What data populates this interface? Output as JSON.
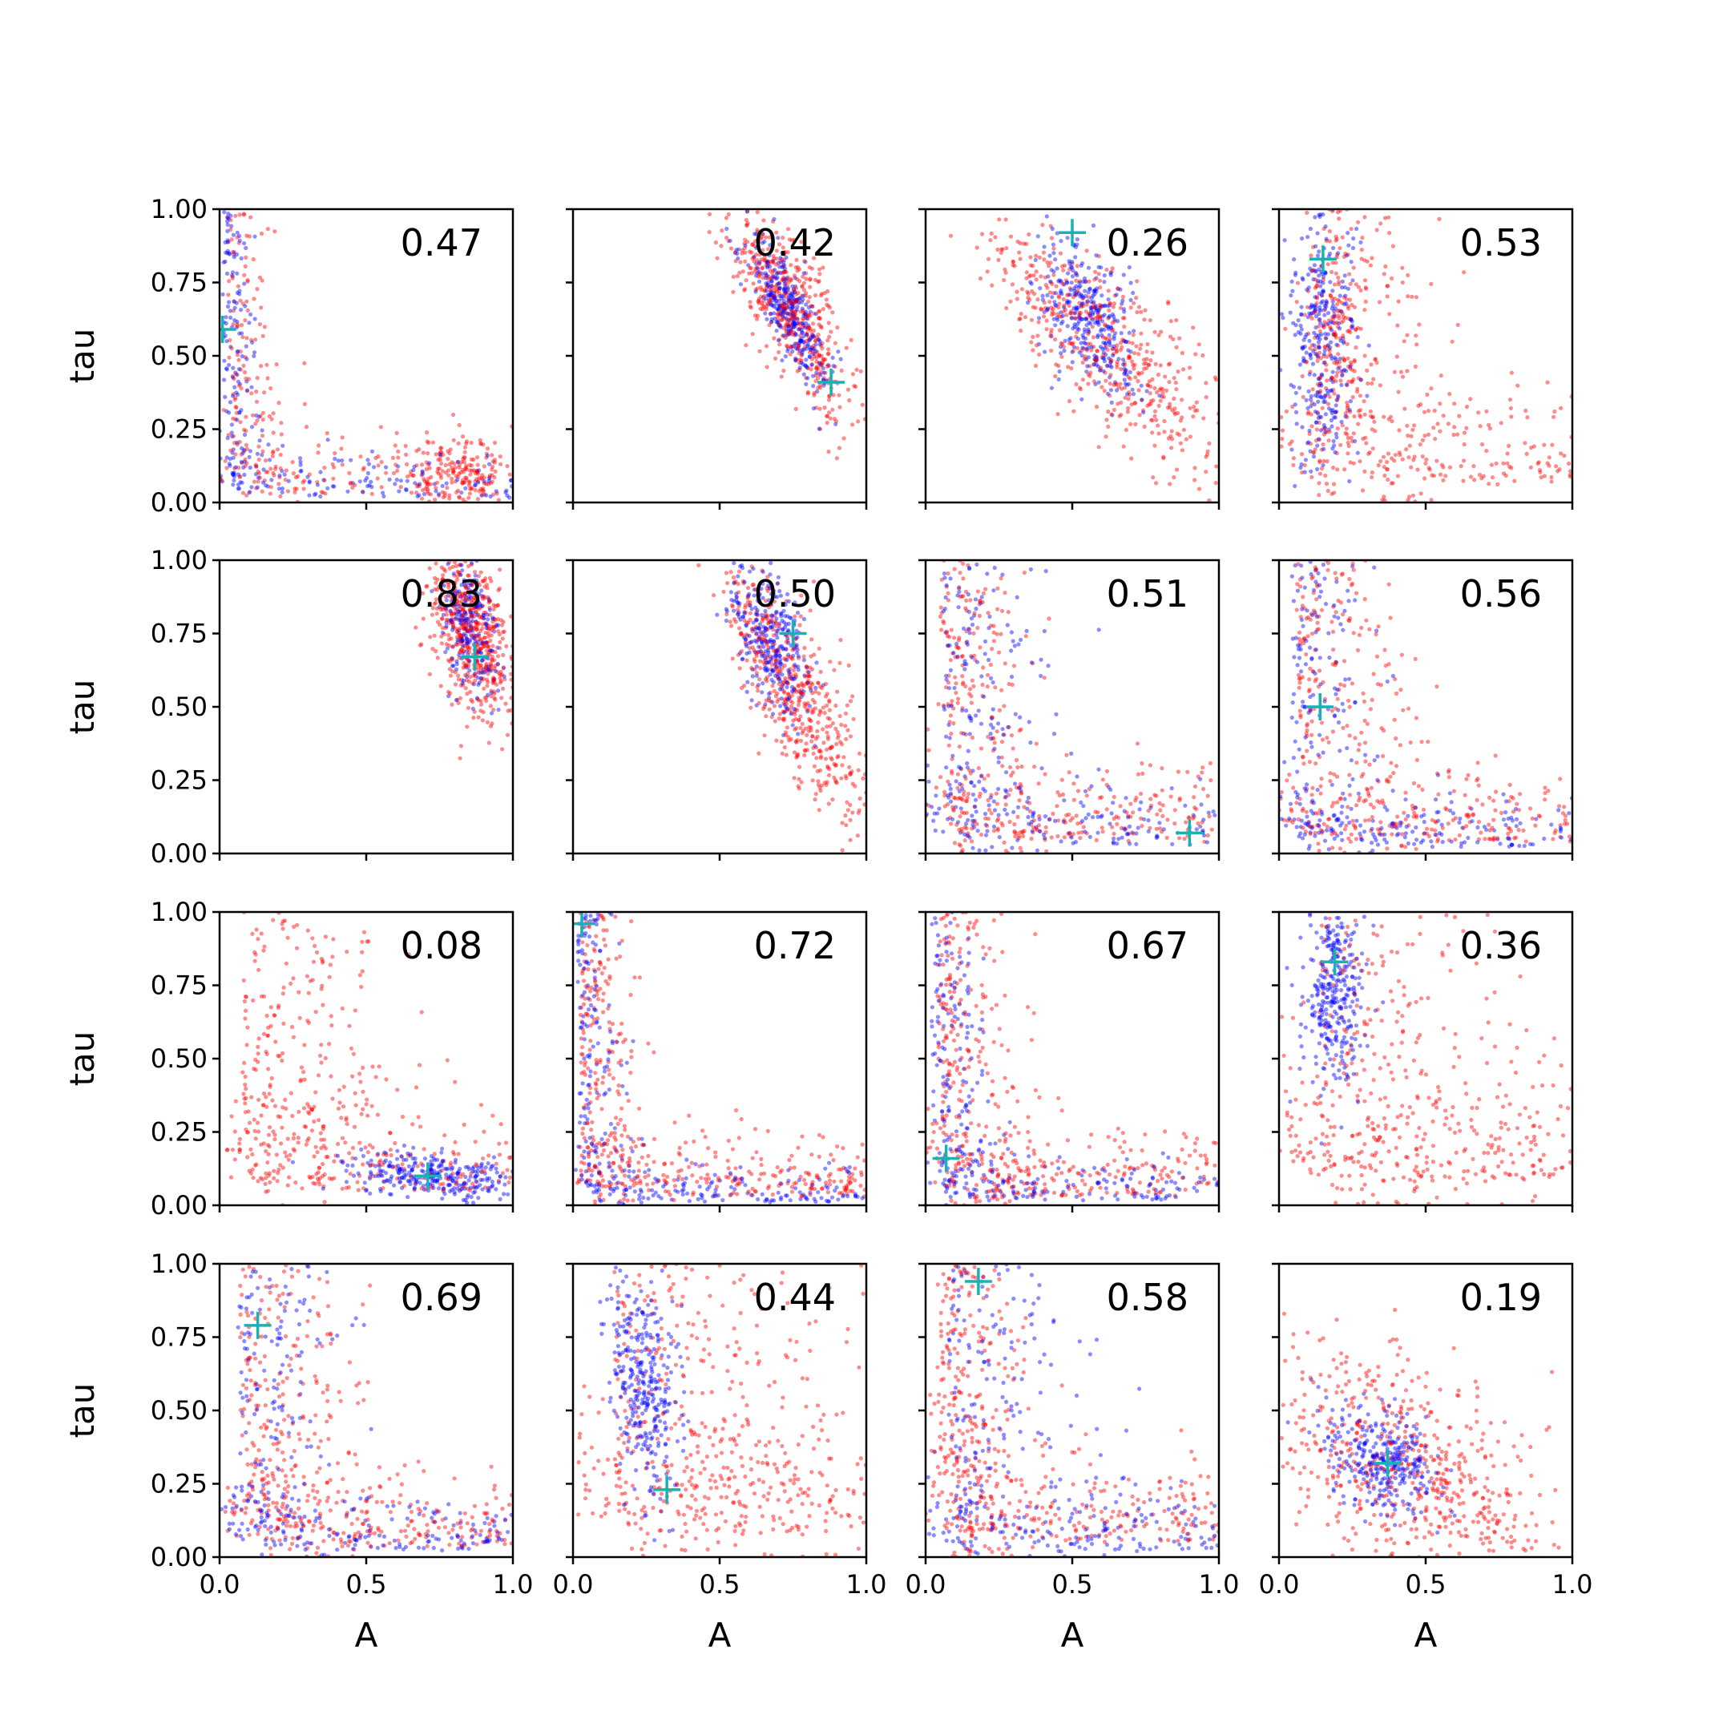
{
  "figure": {
    "rows": 4,
    "cols": 4,
    "xlabel": "A",
    "ylabel": "tau",
    "xlim": [
      0,
      1
    ],
    "ylim": [
      0,
      1
    ],
    "xticks": [
      0.0,
      0.5,
      1.0
    ],
    "xtick_labels": [
      "0.0",
      "0.5",
      "1.0"
    ],
    "yticks": [
      0.0,
      0.25,
      0.5,
      0.75,
      1.0
    ],
    "ytick_labels": [
      "0.00",
      "0.25",
      "0.50",
      "0.75",
      "1.00"
    ],
    "colors": {
      "series_a": "#0000ff",
      "series_b": "#ff0000",
      "marker": "#17b3b3"
    }
  },
  "chart_data": [
    {
      "type": "scatter",
      "label": "0.47",
      "xlabel": "",
      "ylabel": "tau",
      "xlim": [
        0,
        1
      ],
      "ylim": [
        0,
        1
      ],
      "marker": {
        "x": 0.01,
        "y": 0.59
      },
      "blue": {
        "shape": "corner",
        "ax": 0.02,
        "ty": 0.03,
        "count": 260,
        "seed": 11
      },
      "red": [
        {
          "shape": "corner",
          "ax": 0.05,
          "ty": 0.05,
          "count": 200,
          "seed": 12
        },
        {
          "shape": "blob",
          "cx": 0.82,
          "cy": 0.1,
          "sx": 0.08,
          "sy": 0.06,
          "rho": 0,
          "count": 160,
          "seed": 13
        }
      ]
    },
    {
      "type": "scatter",
      "label": "0.42",
      "xlabel": "",
      "ylabel": "",
      "xlim": [
        0,
        1
      ],
      "ylim": [
        0,
        1
      ],
      "marker": {
        "x": 0.88,
        "y": 0.41
      },
      "blue": {
        "shape": "blob",
        "cx": 0.74,
        "cy": 0.64,
        "sx": 0.07,
        "sy": 0.13,
        "rho": -0.8,
        "count": 320,
        "seed": 21
      },
      "red": [
        {
          "shape": "blob",
          "cx": 0.74,
          "cy": 0.66,
          "sx": 0.1,
          "sy": 0.17,
          "rho": -0.75,
          "count": 360,
          "seed": 22
        }
      ]
    },
    {
      "type": "scatter",
      "label": "0.26",
      "xlabel": "",
      "ylabel": "",
      "xlim": [
        0,
        1
      ],
      "ylim": [
        0,
        1
      ],
      "marker": {
        "x": 0.5,
        "y": 0.92
      },
      "blue": {
        "shape": "blob",
        "cx": 0.55,
        "cy": 0.63,
        "sx": 0.09,
        "sy": 0.13,
        "rho": -0.5,
        "count": 320,
        "seed": 31
      },
      "red": [
        {
          "shape": "blob",
          "cx": 0.6,
          "cy": 0.55,
          "sx": 0.22,
          "sy": 0.22,
          "rho": -0.8,
          "count": 360,
          "seed": 32
        }
      ]
    },
    {
      "type": "scatter",
      "label": "0.53",
      "xlabel": "",
      "ylabel": "",
      "xlim": [
        0,
        1
      ],
      "ylim": [
        0,
        1
      ],
      "marker": {
        "x": 0.15,
        "y": 0.83
      },
      "blue": {
        "shape": "blob",
        "cx": 0.15,
        "cy": 0.55,
        "sx": 0.06,
        "sy": 0.24,
        "rho": 0,
        "count": 300,
        "seed": 41
      },
      "red": [
        {
          "shape": "corner",
          "ax": 0.18,
          "ty": 0.12,
          "count": 280,
          "seed": 42
        },
        {
          "shape": "blob",
          "cx": 0.2,
          "cy": 0.6,
          "sx": 0.06,
          "sy": 0.2,
          "rho": 0,
          "count": 150,
          "seed": 43
        }
      ]
    },
    {
      "type": "scatter",
      "label": "0.83",
      "xlabel": "",
      "ylabel": "tau",
      "xlim": [
        0,
        1
      ],
      "ylim": [
        0,
        1
      ],
      "marker": {
        "x": 0.87,
        "y": 0.67
      },
      "blue": {
        "shape": "blob",
        "cx": 0.85,
        "cy": 0.77,
        "sx": 0.05,
        "sy": 0.12,
        "rho": -0.3,
        "count": 220,
        "seed": 51
      },
      "red": [
        {
          "shape": "blob",
          "cx": 0.86,
          "cy": 0.76,
          "sx": 0.07,
          "sy": 0.15,
          "rho": -0.4,
          "count": 380,
          "seed": 52
        }
      ]
    },
    {
      "type": "scatter",
      "label": "0.50",
      "xlabel": "",
      "ylabel": "",
      "xlim": [
        0,
        1
      ],
      "ylim": [
        0,
        1
      ],
      "marker": {
        "x": 0.75,
        "y": 0.75
      },
      "blue": {
        "shape": "blob",
        "cx": 0.67,
        "cy": 0.73,
        "sx": 0.07,
        "sy": 0.13,
        "rho": -0.5,
        "count": 300,
        "seed": 61
      },
      "red": [
        {
          "shape": "blob",
          "cx": 0.74,
          "cy": 0.58,
          "sx": 0.12,
          "sy": 0.22,
          "rho": -0.8,
          "count": 360,
          "seed": 62
        }
      ]
    },
    {
      "type": "scatter",
      "label": "0.51",
      "xlabel": "",
      "ylabel": "",
      "xlim": [
        0,
        1
      ],
      "ylim": [
        0,
        1
      ],
      "marker": {
        "x": 0.9,
        "y": 0.07
      },
      "blue": {
        "shape": "corner",
        "ax": 0.12,
        "ty": 0.06,
        "count": 300,
        "seed": 71
      },
      "red": [
        {
          "shape": "corner",
          "ax": 0.1,
          "ty": 0.08,
          "count": 300,
          "seed": 72
        }
      ]
    },
    {
      "type": "scatter",
      "label": "0.56",
      "xlabel": "",
      "ylabel": "",
      "xlim": [
        0,
        1
      ],
      "ylim": [
        0,
        1
      ],
      "marker": {
        "x": 0.14,
        "y": 0.5
      },
      "blue": {
        "shape": "corner",
        "ax": 0.08,
        "ty": 0.04,
        "count": 300,
        "seed": 81
      },
      "red": [
        {
          "shape": "corner",
          "ax": 0.12,
          "ty": 0.08,
          "count": 300,
          "seed": 82
        }
      ]
    },
    {
      "type": "scatter",
      "label": "0.08",
      "xlabel": "",
      "ylabel": "tau",
      "xlim": [
        0,
        1
      ],
      "ylim": [
        0,
        1
      ],
      "marker": {
        "x": 0.71,
        "y": 0.1
      },
      "blue": {
        "shape": "blob",
        "cx": 0.72,
        "cy": 0.1,
        "sx": 0.15,
        "sy": 0.04,
        "rho": -0.2,
        "count": 280,
        "seed": 91
      },
      "red": [
        {
          "shape": "corner",
          "ax": 0.15,
          "ty": 0.1,
          "count": 320,
          "seed": 92
        }
      ]
    },
    {
      "type": "scatter",
      "label": "0.72",
      "xlabel": "",
      "ylabel": "",
      "xlim": [
        0,
        1
      ],
      "ylim": [
        0,
        1
      ],
      "marker": {
        "x": 0.03,
        "y": 0.96
      },
      "blue": {
        "shape": "corner",
        "ax": 0.03,
        "ty": 0.02,
        "count": 300,
        "seed": 101
      },
      "red": [
        {
          "shape": "corner",
          "ax": 0.05,
          "ty": 0.06,
          "count": 320,
          "seed": 102
        }
      ]
    },
    {
      "type": "scatter",
      "label": "0.67",
      "xlabel": "",
      "ylabel": "",
      "xlim": [
        0,
        1
      ],
      "ylim": [
        0,
        1
      ],
      "marker": {
        "x": 0.07,
        "y": 0.16
      },
      "blue": {
        "shape": "corner",
        "ax": 0.04,
        "ty": 0.03,
        "count": 300,
        "seed": 111
      },
      "red": [
        {
          "shape": "corner",
          "ax": 0.08,
          "ty": 0.06,
          "count": 320,
          "seed": 112
        }
      ]
    },
    {
      "type": "scatter",
      "label": "0.36",
      "xlabel": "",
      "ylabel": "",
      "xlim": [
        0,
        1
      ],
      "ylim": [
        0,
        1
      ],
      "marker": {
        "x": 0.19,
        "y": 0.83
      },
      "blue": {
        "shape": "blob",
        "cx": 0.19,
        "cy": 0.72,
        "sx": 0.05,
        "sy": 0.15,
        "rho": 0,
        "count": 300,
        "seed": 121
      },
      "red": [
        {
          "shape": "corner",
          "ax": 0.25,
          "ty": 0.16,
          "count": 320,
          "seed": 122
        }
      ]
    },
    {
      "type": "scatter",
      "label": "0.69",
      "xlabel": "A",
      "ylabel": "tau",
      "xlim": [
        0,
        1
      ],
      "ylim": [
        0,
        1
      ],
      "marker": {
        "x": 0.13,
        "y": 0.79
      },
      "blue": {
        "shape": "corner",
        "ax": 0.12,
        "ty": 0.04,
        "count": 300,
        "seed": 131
      },
      "red": [
        {
          "shape": "corner",
          "ax": 0.14,
          "ty": 0.07,
          "count": 320,
          "seed": 132
        }
      ]
    },
    {
      "type": "scatter",
      "label": "0.44",
      "xlabel": "A",
      "ylabel": "",
      "xlim": [
        0,
        1
      ],
      "ylim": [
        0,
        1
      ],
      "marker": {
        "x": 0.32,
        "y": 0.23
      },
      "blue": {
        "shape": "blob",
        "cx": 0.24,
        "cy": 0.6,
        "sx": 0.06,
        "sy": 0.2,
        "rho": -0.4,
        "count": 320,
        "seed": 141
      },
      "red": [
        {
          "shape": "corner",
          "ax": 0.28,
          "ty": 0.16,
          "count": 360,
          "seed": 142
        }
      ]
    },
    {
      "type": "scatter",
      "label": "0.58",
      "xlabel": "A",
      "ylabel": "",
      "xlim": [
        0,
        1
      ],
      "ylim": [
        0,
        1
      ],
      "marker": {
        "x": 0.18,
        "y": 0.94
      },
      "blue": {
        "shape": "corner",
        "ax": 0.15,
        "ty": 0.05,
        "count": 320,
        "seed": 151
      },
      "red": [
        {
          "shape": "corner",
          "ax": 0.08,
          "ty": 0.1,
          "count": 340,
          "seed": 152
        }
      ]
    },
    {
      "type": "scatter",
      "label": "0.19",
      "xlabel": "A",
      "ylabel": "",
      "xlim": [
        0,
        1
      ],
      "ylim": [
        0,
        1
      ],
      "marker": {
        "x": 0.37,
        "y": 0.32
      },
      "blue": {
        "shape": "blob",
        "cx": 0.35,
        "cy": 0.33,
        "sx": 0.1,
        "sy": 0.1,
        "rho": -0.4,
        "count": 320,
        "seed": 161
      },
      "red": [
        {
          "shape": "blob",
          "cx": 0.42,
          "cy": 0.3,
          "sx": 0.25,
          "sy": 0.22,
          "rho": -0.5,
          "count": 380,
          "seed": 162
        }
      ]
    }
  ]
}
